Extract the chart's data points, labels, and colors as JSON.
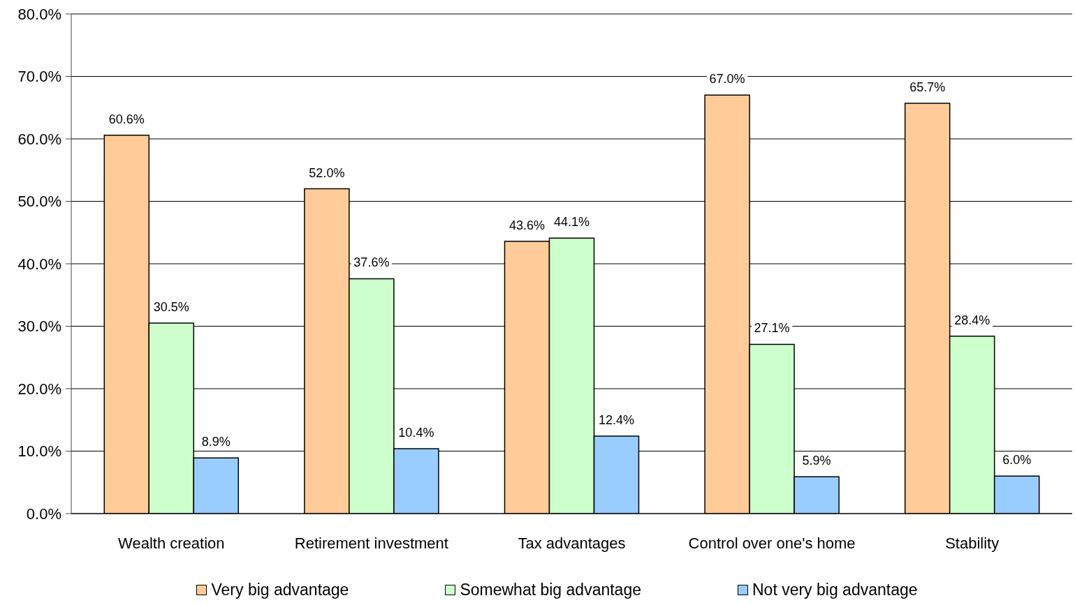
{
  "chart_data": {
    "type": "bar",
    "categories": [
      "Wealth creation",
      "Retirement investment",
      "Tax advantages",
      "Control over one's home",
      "Stability"
    ],
    "series": [
      {
        "name": "Very big advantage",
        "color": "#ffcc99",
        "values": [
          60.6,
          52.0,
          43.6,
          67.0,
          65.7
        ],
        "value_labels": [
          "60.6%",
          "52.0%",
          "43.6%",
          "67.0%",
          "65.7%"
        ]
      },
      {
        "name": "Somewhat big advantage",
        "color": "#ccffcc",
        "values": [
          30.5,
          37.6,
          44.1,
          27.1,
          28.4
        ],
        "value_labels": [
          "30.5%",
          "37.6%",
          "44.1%",
          "27.1%",
          "28.4%"
        ]
      },
      {
        "name": "Not very big advantage",
        "color": "#99ccff",
        "values": [
          8.9,
          10.4,
          12.4,
          5.9,
          6.0
        ],
        "value_labels": [
          "8.9%",
          "10.4%",
          "12.4%",
          "5.9%",
          "6.0%"
        ]
      }
    ],
    "ylim": [
      0,
      80
    ],
    "yticks": [
      {
        "value": 0,
        "label": "0.0%"
      },
      {
        "value": 10,
        "label": "10.0%"
      },
      {
        "value": 20,
        "label": "20.0%"
      },
      {
        "value": 30,
        "label": "30.0%"
      },
      {
        "value": 40,
        "label": "40.0%"
      },
      {
        "value": 50,
        "label": "50.0%"
      },
      {
        "value": 60,
        "label": "60.0%"
      },
      {
        "value": 70,
        "label": "70.0%"
      },
      {
        "value": 80,
        "label": "80.0%"
      }
    ],
    "grid": "y",
    "legend": "bottom"
  }
}
